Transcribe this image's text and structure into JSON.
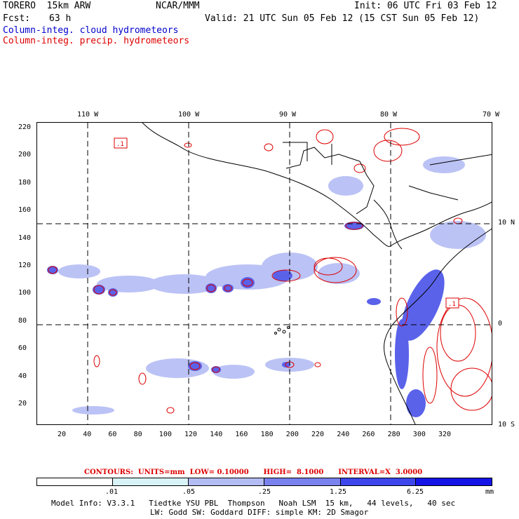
{
  "header": {
    "model": "TORERO  15km ARW",
    "center": "NCAR/MMM",
    "init": "Init: 06 UTC Fri 03 Feb 12",
    "fcst_label": "Fcst:",
    "fcst_value": "63 h",
    "valid": "Valid: 21 UTC Sun 05 Feb 12 (15 CST Sun 05 Feb 12)"
  },
  "legend": {
    "cloud": "Column-integ. cloud hydrometeors",
    "precip": "Column-integ. precip. hydrometeors"
  },
  "axes": {
    "top_lon": [
      "110 W",
      "100 W",
      "90 W",
      "80 W",
      "70 W"
    ],
    "right_lat": [
      "10 N",
      "0",
      "10 S"
    ],
    "left_grid": [
      "220",
      "200",
      "180",
      "160",
      "140",
      "120",
      "100",
      "80",
      "60",
      "40",
      "20"
    ],
    "bottom_grid": [
      "20",
      "40",
      "60",
      "80",
      "100",
      "120",
      "140",
      "160",
      "180",
      "200",
      "220",
      "240",
      "260",
      "280",
      "300",
      "320"
    ]
  },
  "contour_info": {
    "label": "CONTOURS:",
    "units": "UNITS=mm",
    "low": "LOW= 0.10000",
    "high": "HIGH=  8.1000",
    "interval": "INTERVAL=X  3.0000"
  },
  "map_labels": {
    "box_label_1": ".1",
    "box_label_2": ".1"
  },
  "colorbar": {
    "labels": [
      ".01",
      ".05",
      ".25",
      "1.25",
      "6.25"
    ],
    "unit": "mm",
    "colors": [
      "#ffffff",
      "#d8f4f8",
      "#b4bcf4",
      "#7a82ee",
      "#3c46ea",
      "#1414e6"
    ]
  },
  "footer": {
    "line1": "Model Info: V3.3.1   Tiedtke YSU PBL  Thompson   Noah LSM  15 km,   44 levels,   40 sec",
    "line2": "LW: Godd SW: Goddard DIFF: simple KM: 2D Smagor"
  }
}
